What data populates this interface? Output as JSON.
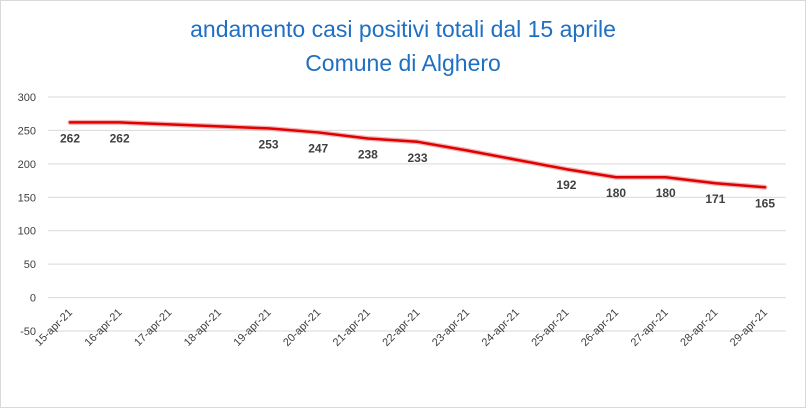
{
  "chart_data": {
    "type": "line",
    "title_line1": "andamento casi positivi totali dal 15 aprile",
    "title_line2": "Comune di Alghero",
    "categories": [
      "15-apr-21",
      "16-apr-21",
      "17-apr-21",
      "18-apr-21",
      "19-apr-21",
      "20-apr-21",
      "21-apr-21",
      "22-apr-21",
      "23-apr-21",
      "24-apr-21",
      "25-apr-21",
      "26-apr-21",
      "27-apr-21",
      "28-apr-21",
      "29-apr-21"
    ],
    "values": [
      262,
      262,
      259,
      256,
      253,
      247,
      238,
      233,
      220,
      206,
      192,
      180,
      180,
      171,
      165
    ],
    "data_labels": [
      {
        "index": 0,
        "text": "262"
      },
      {
        "index": 1,
        "text": "262"
      },
      {
        "index": 4,
        "text": "253"
      },
      {
        "index": 5,
        "text": "247"
      },
      {
        "index": 6,
        "text": "238"
      },
      {
        "index": 7,
        "text": "233"
      },
      {
        "index": 10,
        "text": "192"
      },
      {
        "index": 11,
        "text": "180"
      },
      {
        "index": 12,
        "text": "180"
      },
      {
        "index": 13,
        "text": "171"
      },
      {
        "index": 14,
        "text": "165"
      }
    ],
    "y_ticks": [
      -50,
      0,
      50,
      100,
      150,
      200,
      250,
      300
    ],
    "ylim": [
      -50,
      300
    ],
    "xlabel": "",
    "ylabel": "",
    "grid": true,
    "legend": "none",
    "colors": {
      "line": "#e00000",
      "grid": "#d9d9d9",
      "title": "#1f6fc2",
      "text": "#404040"
    }
  }
}
